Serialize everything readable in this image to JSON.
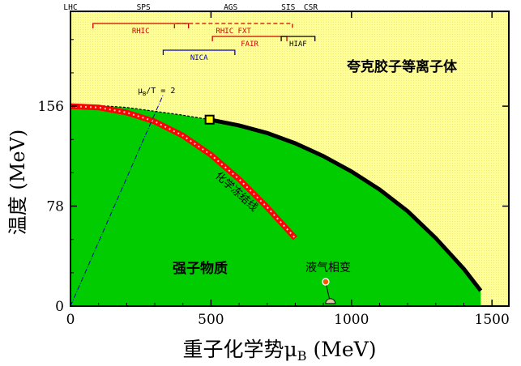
{
  "chart_data": {
    "type": "area",
    "xlabel": "重子化学势",
    "xlabel_symbol": "μ",
    "xlabel_sub": "B",
    "xlabel_unit": " (MeV)",
    "ylabel": "温度 (MeV)",
    "xlim": [
      0,
      1560
    ],
    "ylim": [
      0,
      230
    ],
    "xticks": [
      0,
      500,
      1000,
      1500
    ],
    "xtick_labels": [
      "0",
      "500",
      "1000",
      "1500"
    ],
    "yticks": [
      0,
      78,
      156
    ],
    "ytick_labels": [
      "0",
      "78",
      "156"
    ],
    "regions": {
      "qgp": "夸克胶子等离子体",
      "hadron": "强子物质",
      "liquid_gas": "液气相变",
      "freezeout": "化学冻结线",
      "mu_over_t": "μ_B/T = 2"
    },
    "phase_boundary_crossover": {
      "x": [
        0,
        100,
        200,
        300,
        400,
        495
      ],
      "y": [
        157,
        156.5,
        155,
        152,
        149,
        145.5
      ]
    },
    "critical_point": {
      "x": 495,
      "y": 145.5
    },
    "phase_boundary_first_order": {
      "x": [
        495,
        600,
        700,
        800,
        900,
        1000,
        1100,
        1200,
        1300,
        1400,
        1460
      ],
      "y": [
        145.5,
        141,
        135,
        127,
        117,
        105,
        91,
        74,
        53,
        29,
        12
      ]
    },
    "freezeout_line": {
      "x": [
        0,
        100,
        200,
        300,
        400,
        500,
        600,
        700,
        800
      ],
      "y": [
        156,
        155,
        151,
        144,
        133,
        118,
        99,
        77,
        53
      ]
    },
    "mu_over_t_line": {
      "x": [
        0,
        330
      ],
      "y": [
        0,
        165
      ]
    },
    "liquid_gas_point": {
      "x": 908,
      "y": 19
    },
    "nuclear_point": {
      "x": 925,
      "y": 2
    },
    "colors": {
      "background": "#ffff99",
      "hadron": "#00cc00",
      "freezeout": "#ff0000",
      "boundary": "#000000",
      "critical_point": "#ffff00",
      "rhic": "#cc0000",
      "nica": "#0000cc",
      "hiaf": "#000000"
    },
    "experiments_top": [
      "LHC",
      "SPS",
      "AGS",
      "SIS",
      "CSR"
    ],
    "experiments_top_x": [
      0,
      260,
      570,
      775,
      855
    ],
    "facilities": [
      {
        "label": "RHIC",
        "x1": 80,
        "x2": 420,
        "row": 1,
        "dashed": false,
        "color": "#cc0000"
      },
      {
        "label": "RHIC FXT",
        "x1": 370,
        "x2": 790,
        "row": 1,
        "dashed": true,
        "color": "#cc0000"
      },
      {
        "label": "FAIR",
        "x1": 505,
        "x2": 770,
        "row": 2,
        "dashed": false,
        "color": "#cc0000"
      },
      {
        "label": "HIAF",
        "x1": 750,
        "x2": 870,
        "row": 2,
        "dashed": false,
        "color": "#000000"
      },
      {
        "label": "NICA",
        "x1": 330,
        "x2": 585,
        "row": 3,
        "dashed": false,
        "color": "#0000cc"
      }
    ]
  }
}
